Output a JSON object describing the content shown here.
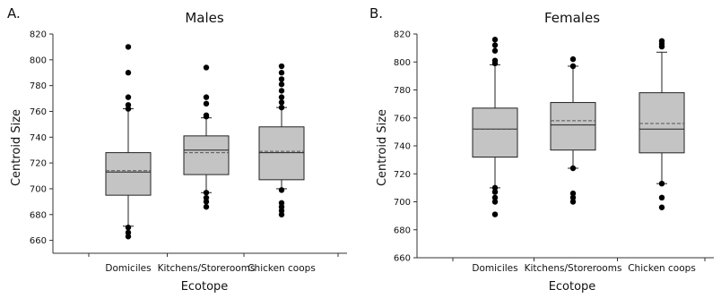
{
  "chart_data": [
    {
      "type": "box",
      "panel_label": "A.",
      "title": "Males",
      "xlabel": "Ecotope",
      "ylabel": "Centroid Size",
      "ylim": [
        650,
        820
      ],
      "yticks": [
        660,
        680,
        700,
        720,
        740,
        760,
        780,
        800,
        820
      ],
      "grid": false,
      "mean_line": "dashed",
      "categories": [
        "Domiciles",
        "Kitchens/Storerooms",
        "Chicken coops"
      ],
      "boxes": [
        {
          "category": "Domiciles",
          "whisker_low": 671,
          "q1": 695,
          "median": 713,
          "mean": 714,
          "q3": 728,
          "whisker_high": 762,
          "outliers": [
            810,
            790,
            771,
            765,
            762,
            670,
            666,
            663
          ]
        },
        {
          "category": "Kitchens/Storerooms",
          "whisker_low": 697,
          "q1": 711,
          "median": 730,
          "mean": 728,
          "q3": 741,
          "whisker_high": 755,
          "outliers": [
            794,
            771,
            766,
            757,
            756,
            697,
            693,
            690,
            686
          ]
        },
        {
          "category": "Chicken coops",
          "whisker_low": 700,
          "q1": 707,
          "median": 728,
          "mean": 729,
          "q3": 748,
          "whisker_high": 763,
          "outliers": [
            795,
            790,
            785,
            781,
            776,
            771,
            767,
            763,
            699,
            689,
            686,
            683,
            680
          ]
        }
      ]
    },
    {
      "type": "box",
      "panel_label": "B.",
      "title": "Females",
      "xlabel": "Ecotope",
      "ylabel": "Centroid Size",
      "ylim": [
        660,
        820
      ],
      "yticks": [
        660,
        680,
        700,
        720,
        740,
        760,
        780,
        800,
        820
      ],
      "grid": false,
      "mean_line": "dashed",
      "categories": [
        "Domiciles",
        "Kitchens/Storerooms",
        "Chicken coops"
      ],
      "boxes": [
        {
          "category": "Domiciles",
          "whisker_low": 710,
          "q1": 732,
          "median": 752,
          "mean": 752,
          "q3": 767,
          "whisker_high": 798,
          "outliers": [
            816,
            812,
            808,
            801,
            799,
            710,
            707,
            703,
            700,
            691
          ]
        },
        {
          "category": "Kitchens/Storerooms",
          "whisker_low": 724,
          "q1": 737,
          "median": 755,
          "mean": 758,
          "q3": 771,
          "whisker_high": 797,
          "outliers": [
            802,
            797,
            724,
            706,
            703,
            700
          ]
        },
        {
          "category": "Chicken coops",
          "whisker_low": 713,
          "q1": 735,
          "median": 752,
          "mean": 756,
          "q3": 778,
          "whisker_high": 807,
          "outliers": [
            815,
            813,
            811,
            713,
            703,
            696
          ]
        }
      ]
    }
  ]
}
